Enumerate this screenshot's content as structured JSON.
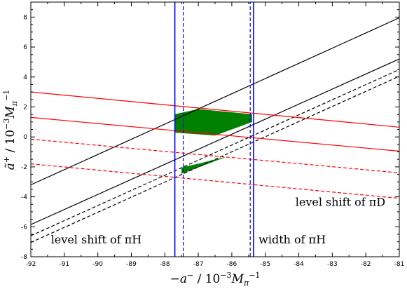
{
  "chart_data": {
    "type": "line",
    "title": "",
    "xlabel": "−a⁻ / 10⁻³M_π⁻¹",
    "ylabel": "ã⁺ / 10⁻³M_π⁻¹",
    "xlim": [
      -92,
      -81
    ],
    "ylim": [
      -8,
      9
    ],
    "xticks": [
      -92,
      -91,
      -90,
      -89,
      -88,
      -87,
      -86,
      -85,
      -84,
      -83,
      -82,
      -81
    ],
    "yticks": [
      -8,
      -6,
      -4,
      -2,
      0,
      2,
      4,
      6,
      8
    ],
    "grid": false,
    "legend": "none",
    "series": [
      {
        "color": "#000000",
        "style": "solid",
        "x": [
          -92,
          -81
        ],
        "y": [
          -3.2,
          7.95
        ]
      },
      {
        "color": "#000000",
        "style": "solid",
        "x": [
          -92,
          -81
        ],
        "y": [
          -5.85,
          5.2
        ]
      },
      {
        "color": "#000000",
        "style": "dashed",
        "x": [
          -92,
          -81
        ],
        "y": [
          -6.6,
          4.5
        ]
      },
      {
        "color": "#000000",
        "style": "dashed",
        "x": [
          -92,
          -81
        ],
        "y": [
          -7.05,
          4.05
        ]
      },
      {
        "color": "#ff0000",
        "style": "solid",
        "x": [
          -92,
          -81
        ],
        "y": [
          3.0,
          0.65
        ]
      },
      {
        "color": "#ff0000",
        "style": "solid",
        "x": [
          -92,
          -81
        ],
        "y": [
          1.3,
          -0.95
        ]
      },
      {
        "color": "#ff0000",
        "style": "dashed",
        "x": [
          -92,
          -81
        ],
        "y": [
          -0.15,
          -2.4
        ]
      },
      {
        "color": "#ff0000",
        "style": "dashed",
        "x": [
          -92,
          -81
        ],
        "y": [
          -1.8,
          -4.1
        ]
      },
      {
        "color": "#0000ff",
        "style": "solid",
        "x": [
          -87.7,
          -87.7
        ],
        "y": [
          -8,
          9
        ]
      },
      {
        "color": "#0000ff",
        "style": "solid",
        "x": [
          -85.35,
          -85.35
        ],
        "y": [
          -8,
          9
        ]
      },
      {
        "color": "#0000ff",
        "style": "dashed",
        "x": [
          -87.45,
          -87.45
        ],
        "y": [
          -8,
          9
        ]
      },
      {
        "color": "#0000ff",
        "style": "dashed",
        "x": [
          -85.45,
          -85.45
        ],
        "y": [
          -8,
          9
        ]
      }
    ],
    "regions": [
      {
        "color": "#008000",
        "x": [
          -87.7,
          -87.0,
          -85.4,
          -85.4,
          -86.5,
          -87.7
        ],
        "y": [
          1.5,
          1.85,
          1.5,
          1.0,
          0.1,
          0.3
        ]
      },
      {
        "color": "#008000",
        "x": [
          -87.5,
          -86.9,
          -86.2,
          -87.5
        ],
        "y": [
          -2.05,
          -1.75,
          -1.35,
          -2.45
        ]
      }
    ],
    "annotations": [
      {
        "text": "level shift of πD",
        "x": -84.1,
        "y": -4.6
      },
      {
        "text": "level shift of πH",
        "x": -91.4,
        "y": -7.1
      },
      {
        "text": "width of πH",
        "x": -85.2,
        "y": -7.1
      }
    ]
  }
}
